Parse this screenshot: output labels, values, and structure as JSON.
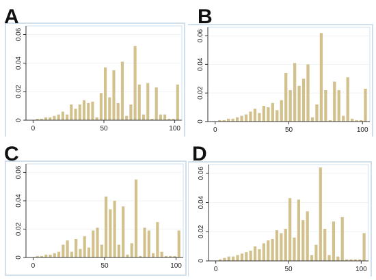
{
  "chart_data": [
    {
      "panel": "A",
      "type": "bar",
      "x": [
        3,
        6,
        9,
        12,
        15,
        18,
        21,
        24,
        27,
        30,
        33,
        36,
        39,
        42,
        45,
        48,
        51,
        54,
        57,
        60,
        63,
        66,
        69,
        72,
        75,
        78,
        81,
        84,
        87,
        90,
        93,
        96,
        99,
        102
      ],
      "values": [
        0.001,
        0.001,
        0.002,
        0.002,
        0.003,
        0.004,
        0.006,
        0.004,
        0.011,
        0.008,
        0.011,
        0.014,
        0.012,
        0.013,
        0.002,
        0.019,
        0.037,
        0.016,
        0.035,
        0.012,
        0.041,
        0.003,
        0.011,
        0.052,
        0.025,
        0.004,
        0.026,
        0.001,
        0.023,
        0.004,
        0.004,
        0.001,
        0.001,
        0.025
      ],
      "xlim": [
        -5,
        105
      ],
      "ylim": [
        0,
        0.066
      ],
      "xticks": [
        "0",
        "50",
        "100"
      ],
      "yticks": [
        "0",
        "0.02",
        "0.04",
        "0.06"
      ]
    },
    {
      "panel": "B",
      "type": "bar",
      "x": [
        3,
        6,
        9,
        12,
        15,
        18,
        21,
        24,
        27,
        30,
        33,
        36,
        39,
        42,
        45,
        48,
        51,
        54,
        57,
        60,
        63,
        66,
        69,
        72,
        75,
        78,
        81,
        84,
        87,
        90,
        93,
        96,
        99,
        102
      ],
      "values": [
        0.001,
        0.001,
        0.002,
        0.002,
        0.003,
        0.004,
        0.005,
        0.007,
        0.009,
        0.006,
        0.011,
        0.01,
        0.013,
        0.008,
        0.015,
        0.034,
        0.022,
        0.041,
        0.025,
        0.03,
        0.04,
        0.003,
        0.012,
        0.062,
        0.022,
        0.001,
        0.028,
        0.022,
        0.004,
        0.031,
        0.002,
        0.001,
        0.001,
        0.023
      ],
      "xlim": [
        -5,
        105
      ],
      "ylim": [
        0,
        0.066
      ],
      "xticks": [
        "0",
        "50",
        "100"
      ],
      "yticks": [
        "0",
        "0.02",
        "0.04",
        "0.06"
      ]
    },
    {
      "panel": "C",
      "type": "bar",
      "x": [
        3,
        6,
        9,
        12,
        15,
        18,
        21,
        24,
        27,
        30,
        33,
        36,
        39,
        42,
        45,
        48,
        51,
        54,
        57,
        60,
        63,
        66,
        69,
        72,
        75,
        78,
        81,
        84,
        87,
        90,
        93,
        96,
        99,
        102
      ],
      "values": [
        0.001,
        0.001,
        0.002,
        0.002,
        0.003,
        0.004,
        0.009,
        0.012,
        0.004,
        0.013,
        0.006,
        0.015,
        0.007,
        0.019,
        0.021,
        0.009,
        0.043,
        0.034,
        0.04,
        0.009,
        0.036,
        0.002,
        0.01,
        0.055,
        0.001,
        0.021,
        0.019,
        0.003,
        0.025,
        0.004,
        0.001,
        0.001,
        0.001,
        0.019
      ],
      "xlim": [
        -5,
        105
      ],
      "ylim": [
        0,
        0.066
      ],
      "xticks": [
        "0",
        "50",
        "100"
      ],
      "yticks": [
        "0",
        "0.02",
        "0.04",
        "0.06"
      ]
    },
    {
      "panel": "D",
      "type": "bar",
      "x": [
        3,
        6,
        9,
        12,
        15,
        18,
        21,
        24,
        27,
        30,
        33,
        36,
        39,
        42,
        45,
        48,
        51,
        54,
        57,
        60,
        63,
        66,
        69,
        72,
        75,
        78,
        81,
        84,
        87,
        90,
        93,
        96,
        99,
        102
      ],
      "values": [
        0.001,
        0.002,
        0.003,
        0.003,
        0.004,
        0.005,
        0.006,
        0.007,
        0.01,
        0.008,
        0.012,
        0.014,
        0.015,
        0.021,
        0.019,
        0.022,
        0.043,
        0.016,
        0.042,
        0.028,
        0.034,
        0.004,
        0.011,
        0.064,
        0.022,
        0.004,
        0.027,
        0.003,
        0.03,
        0.001,
        0.001,
        0.001,
        0.001,
        0.019
      ],
      "xlim": [
        -5,
        105
      ],
      "ylim": [
        0,
        0.066
      ],
      "xticks": [
        "0",
        "50",
        "100"
      ],
      "yticks": [
        "0",
        "0.02",
        "0.04",
        "0.06"
      ]
    }
  ],
  "style": {
    "bar_color": "#d2c18d",
    "frame_color": "#cfe0ec",
    "axis_color": "#333333",
    "grid_color": "#eef3f6"
  }
}
